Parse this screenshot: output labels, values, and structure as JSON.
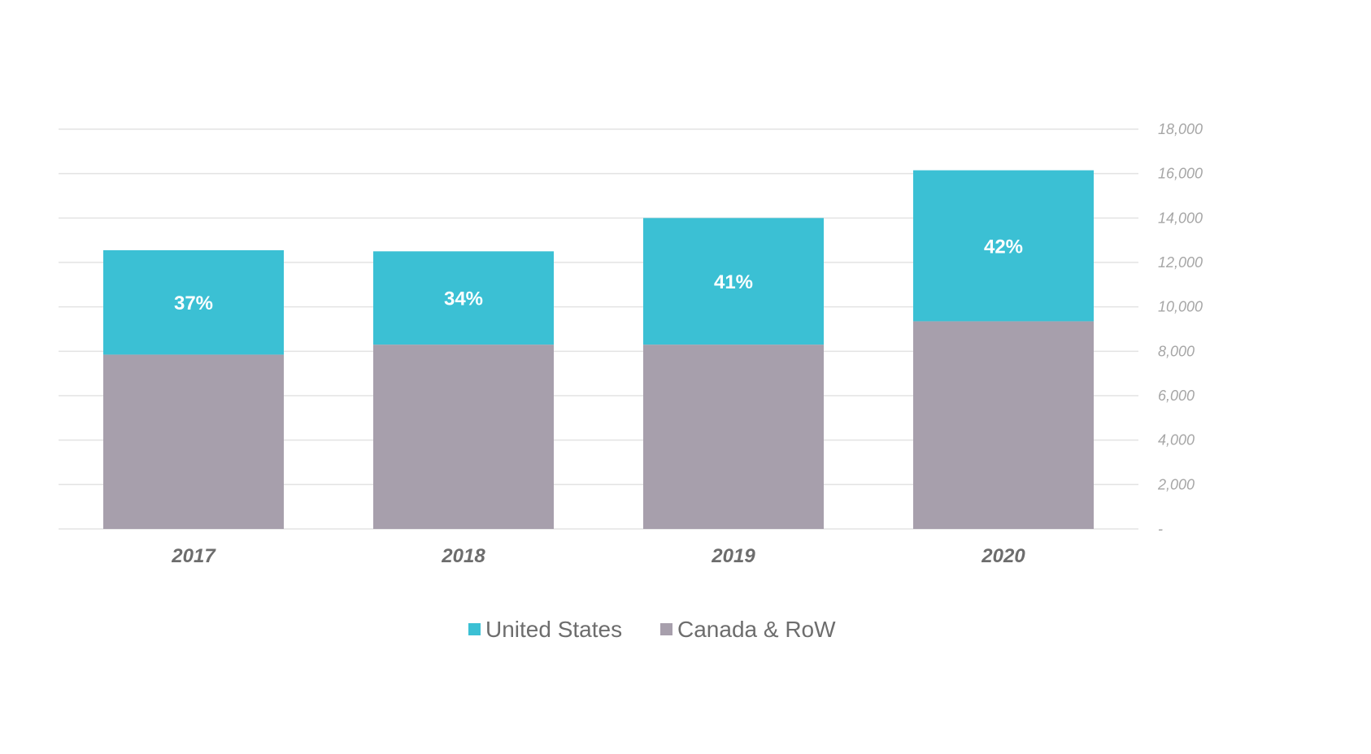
{
  "chart_data": {
    "type": "bar",
    "stacked": true,
    "categories": [
      "2017",
      "2018",
      "2019",
      "2020"
    ],
    "series": [
      {
        "name": "Canada & RoW",
        "color": "#a79fac",
        "values": [
          7850,
          8300,
          8300,
          9350
        ]
      },
      {
        "name": "United States",
        "color": "#3bc0d4",
        "values": [
          4700,
          4200,
          5700,
          6800
        ]
      }
    ],
    "data_labels": [
      "37%",
      "34%",
      "41%",
      "42%"
    ],
    "y_ticks": [
      "-",
      "2,000",
      "4,000",
      "6,000",
      "8,000",
      "10,000",
      "12,000",
      "14,000",
      "16,000",
      "18,000"
    ],
    "ylim": [
      0,
      18000
    ],
    "y_axis_position": "right",
    "grid": true,
    "legend": {
      "placement": "bottom",
      "items": [
        {
          "name": "United States",
          "color": "#3bc0d4"
        },
        {
          "name": "Canada & RoW",
          "color": "#a79fac"
        }
      ]
    }
  }
}
